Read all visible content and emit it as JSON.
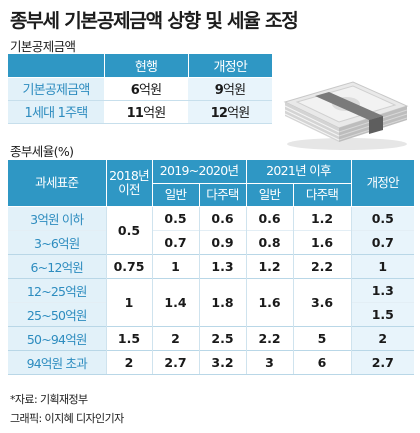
{
  "title": "종부세 기본공제금액 상향 및 세율 조정",
  "deduction": {
    "heading": "기본공제금액",
    "columns": [
      "",
      "현행",
      "개정안"
    ],
    "rows": [
      {
        "label": "기본공제금액",
        "current_num": "6",
        "current_unit": "억원",
        "new_num": "9",
        "new_unit": "억원"
      },
      {
        "label": "1세대 1주택",
        "current_num": "11",
        "current_unit": "억원",
        "new_num": "12",
        "new_unit": "억원"
      }
    ]
  },
  "rates": {
    "heading": "종부세율(%)",
    "header": {
      "base": "과세표준",
      "y2018": "2018년 이전",
      "y2019": "2019~2020년",
      "y2021": "2021년 이후",
      "proposal": "개정안",
      "general": "일반",
      "multi": "다주택"
    },
    "rows": [
      {
        "label": "3억원 이하",
        "y2018": "0.5",
        "g19": "0.5",
        "m19": "0.6",
        "g21": "0.6",
        "m21": "1.2",
        "proposal": "0.5"
      },
      {
        "label": "3~6억원",
        "y2018": "",
        "g19": "0.7",
        "m19": "0.9",
        "g21": "0.8",
        "m21": "1.6",
        "proposal": "0.7"
      },
      {
        "label": "6~12억원",
        "y2018": "0.75",
        "g19": "1",
        "m19": "1.3",
        "g21": "1.2",
        "m21": "2.2",
        "proposal": "1"
      },
      {
        "label": "12~25억원",
        "y2018": "1",
        "g19": "1.4",
        "m19": "1.8",
        "g21": "1.6",
        "m21": "3.6",
        "proposal": "1.3"
      },
      {
        "label": "25~50억원",
        "y2018": "",
        "g19": "",
        "m19": "",
        "g21": "",
        "m21": "",
        "proposal": "1.5"
      },
      {
        "label": "50~94억원",
        "y2018": "1.5",
        "g19": "2",
        "m19": "2.5",
        "g21": "2.2",
        "m21": "5",
        "proposal": "2"
      },
      {
        "label": "94억원 초과",
        "y2018": "2",
        "g19": "2.7",
        "m19": "3.2",
        "g21": "3",
        "m21": "6",
        "proposal": "2.7"
      }
    ]
  },
  "source": "*자료: 기획재정부",
  "credit": "그래픽: 이지혜 디자인기자",
  "colors": {
    "header": "#2f97c4",
    "label_bg": "#e2f1f9",
    "label_text": "#2d8cbf",
    "proposal_bg": "#e8f4fb"
  },
  "illustration": "money-stack-icon"
}
